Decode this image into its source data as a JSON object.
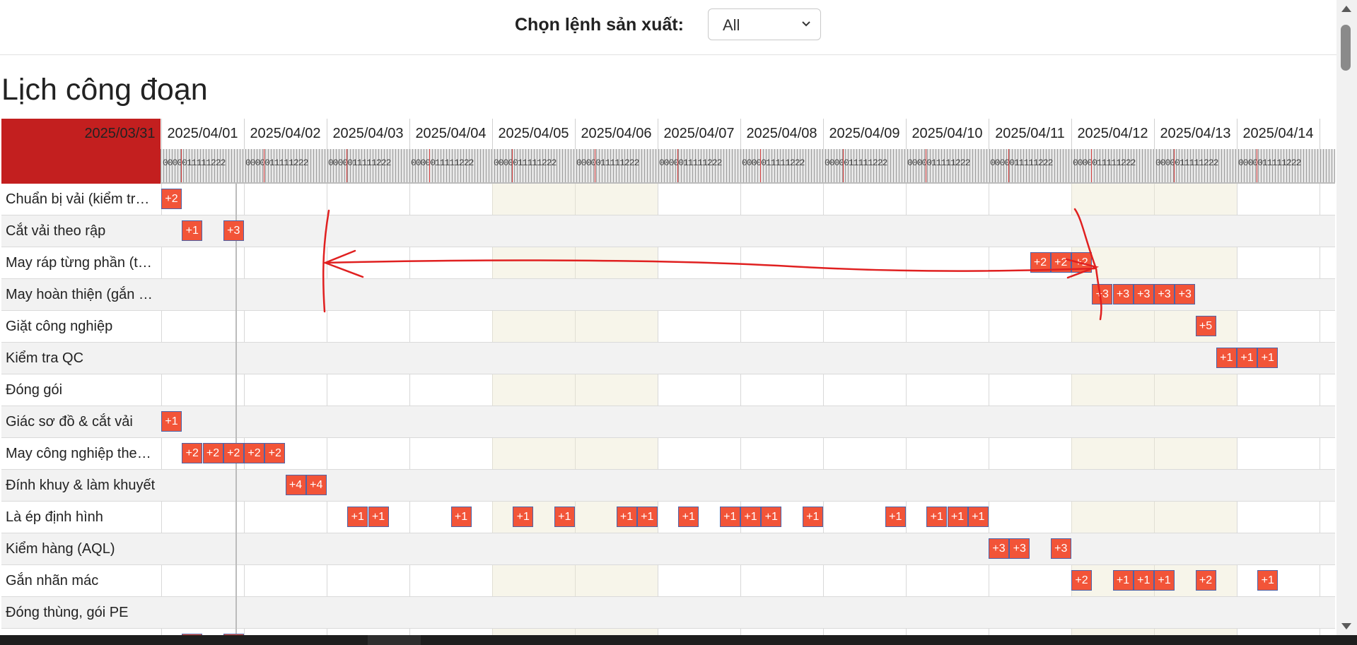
{
  "filter": {
    "label": "Chọn lệnh sản xuất:",
    "selected": "All"
  },
  "title": "Lịch công đoạn",
  "dates": [
    "2025/03/31",
    "2025/04/01",
    "2025/04/02",
    "2025/04/03",
    "2025/04/04",
    "2025/04/05",
    "2025/04/06",
    "2025/04/07",
    "2025/04/08",
    "2025/04/09",
    "2025/04/10",
    "2025/04/11",
    "2025/04/12",
    "2025/04/13",
    "2025/04/14"
  ],
  "weekends": [
    5,
    6,
    12,
    13
  ],
  "hour_ticks": "0000011111222",
  "rows": [
    {
      "label": "Chuẩn bị vải (kiểm tra vải)",
      "tasks": [
        {
          "day": 1.0,
          "t": "+2"
        }
      ]
    },
    {
      "label": "Cắt vải theo rập",
      "tasks": [
        {
          "day": 1.25,
          "t": "+1"
        },
        {
          "day": 1.75,
          "t": "+3"
        }
      ]
    },
    {
      "label": "May ráp từng phần (thân, tay, cổ)",
      "tasks": [
        {
          "day": 11.5,
          "t": "+2"
        },
        {
          "day": 11.75,
          "t": "+2"
        },
        {
          "day": 12.0,
          "t": "+2"
        }
      ]
    },
    {
      "label": "May hoàn thiện (gắn cổ, tay, khóa)",
      "tasks": [
        {
          "day": 12.25,
          "t": "+3"
        },
        {
          "day": 12.5,
          "t": "+3"
        },
        {
          "day": 12.75,
          "t": "+3"
        },
        {
          "day": 13.0,
          "t": "+3"
        },
        {
          "day": 13.25,
          "t": "+3"
        }
      ]
    },
    {
      "label": "Giặt công nghiệp",
      "tasks": [
        {
          "day": 13.5,
          "t": "+5"
        }
      ]
    },
    {
      "label": "Kiểm tra QC",
      "tasks": [
        {
          "day": 13.75,
          "t": "+1"
        },
        {
          "day": 14.0,
          "t": "+1"
        },
        {
          "day": 14.25,
          "t": "+1"
        }
      ]
    },
    {
      "label": "Đóng gói",
      "tasks": []
    },
    {
      "label": "Giác sơ đồ & cắt vải",
      "tasks": [
        {
          "day": 1.0,
          "t": "+1"
        }
      ]
    },
    {
      "label": "May công nghiệp theo chuyền",
      "tasks": [
        {
          "day": 1.25,
          "t": "+2"
        },
        {
          "day": 1.5,
          "t": "+2"
        },
        {
          "day": 1.75,
          "t": "+2"
        },
        {
          "day": 2.0,
          "t": "+2"
        },
        {
          "day": 2.25,
          "t": "+2"
        }
      ]
    },
    {
      "label": "Đính khuy & làm khuyết",
      "tasks": [
        {
          "day": 2.5,
          "t": "+4"
        },
        {
          "day": 2.75,
          "t": "+4"
        }
      ]
    },
    {
      "label": "Là ép định hình",
      "tasks": [
        {
          "day": 3.25,
          "t": "+1"
        },
        {
          "day": 3.5,
          "t": "+1"
        },
        {
          "day": 4.5,
          "t": "+1"
        },
        {
          "day": 5.25,
          "t": "+1"
        },
        {
          "day": 5.75,
          "t": "+1"
        },
        {
          "day": 6.5,
          "t": "+1"
        },
        {
          "day": 6.75,
          "t": "+1"
        },
        {
          "day": 7.25,
          "t": "+1"
        },
        {
          "day": 7.75,
          "t": "+1"
        },
        {
          "day": 8.0,
          "t": "+1"
        },
        {
          "day": 8.25,
          "t": "+1"
        },
        {
          "day": 8.75,
          "t": "+1"
        },
        {
          "day": 9.75,
          "t": "+1"
        },
        {
          "day": 10.25,
          "t": "+1"
        },
        {
          "day": 10.5,
          "t": "+1"
        },
        {
          "day": 10.75,
          "t": "+1"
        }
      ]
    },
    {
      "label": "Kiểm hàng (AQL)",
      "tasks": [
        {
          "day": 11.0,
          "t": "+3"
        },
        {
          "day": 11.25,
          "t": "+3"
        },
        {
          "day": 11.75,
          "t": "+3"
        }
      ]
    },
    {
      "label": "Gắn nhãn mác",
      "tasks": [
        {
          "day": 12.0,
          "t": "+2"
        },
        {
          "day": 12.5,
          "t": "+1"
        },
        {
          "day": 12.75,
          "t": "+1"
        },
        {
          "day": 13.0,
          "t": "+1"
        },
        {
          "day": 13.5,
          "t": "+2"
        },
        {
          "day": 14.25,
          "t": "+1"
        }
      ]
    },
    {
      "label": "Đóng thùng, gói PE",
      "tasks": []
    },
    {
      "label": "",
      "tasks": [
        {
          "day": 1.25,
          "t": ""
        },
        {
          "day": 1.75,
          "t": ""
        }
      ]
    }
  ],
  "colors": {
    "task_fill": "#f25438",
    "task_border": "#4d63a8",
    "corner": "#c31f1f",
    "annotation": "#e02020"
  }
}
